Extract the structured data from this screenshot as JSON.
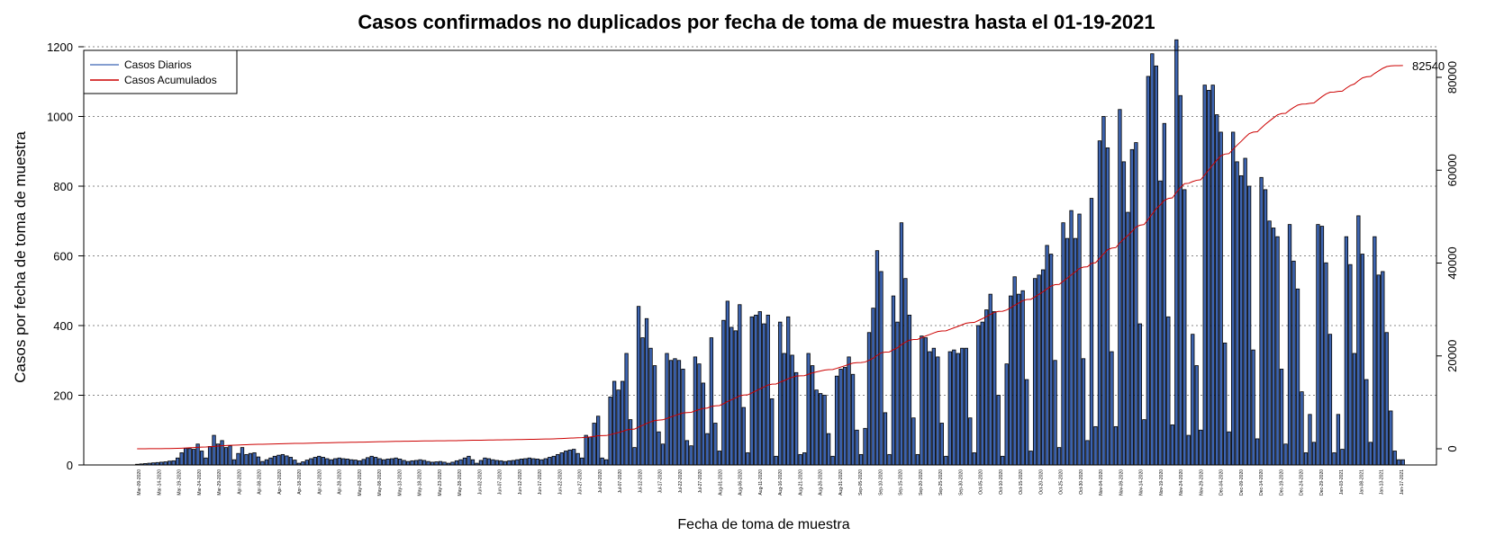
{
  "chart_data": {
    "type": "bar",
    "title": "Casos confirmados no duplicados por fecha de toma de muestra hasta el 01-19-2021",
    "xlabel": "Fecha de toma de muestra",
    "ylabel": "Casos por fecha de toma de muestra",
    "ylim": [
      0,
      1200
    ],
    "y_ticks": [
      0,
      200,
      400,
      600,
      800,
      1000,
      1200
    ],
    "y2lim": [
      0,
      85000
    ],
    "y2_ticks": [
      0,
      20000,
      40000,
      60000,
      80000
    ],
    "grid": "horizontal dotted",
    "legend_position": "top-left",
    "legend": [
      "Casos Diarios",
      "Casos Acumulados"
    ],
    "end_label": "82540",
    "x_tick_labels": [
      "Mar-09-2020",
      "Mar-14-2020",
      "Mar-19-2020",
      "Mar-24-2020",
      "Mar-29-2020",
      "Apr-03-2020",
      "Apr-08-2020",
      "Apr-13-2020",
      "Apr-18-2020",
      "Apr-23-2020",
      "Apr-28-2020",
      "May-03-2020",
      "May-08-2020",
      "May-13-2020",
      "May-18-2020",
      "May-23-2020",
      "May-28-2020",
      "Jun-02-2020",
      "Jun-07-2020",
      "Jun-12-2020",
      "Jun-17-2020",
      "Jun-22-2020",
      "Jun-27-2020",
      "Jul-02-2020",
      "Jul-07-2020",
      "Jul-12-2020",
      "Jul-17-2020",
      "Jul-22-2020",
      "Jul-27-2020",
      "Aug-01-2020",
      "Aug-06-2020",
      "Aug-11-2020",
      "Aug-16-2020",
      "Aug-21-2020",
      "Aug-26-2020",
      "Aug-31-2020",
      "Sep-05-2020",
      "Sep-10-2020",
      "Sep-15-2020",
      "Sep-20-2020",
      "Sep-25-2020",
      "Sep-30-2020",
      "Oct-05-2020",
      "Oct-10-2020",
      "Oct-15-2020",
      "Oct-20-2020",
      "Oct-25-2020",
      "Oct-30-2020",
      "Nov-04-2020",
      "Nov-09-2020",
      "Nov-14-2020",
      "Nov-19-2020",
      "Nov-24-2020",
      "Nov-29-2020",
      "Dec-04-2020",
      "Dec-09-2020",
      "Dec-14-2020",
      "Dec-19-2020",
      "Dec-24-2020",
      "Dec-29-2020",
      "Jan-03-2021",
      "Jan-08-2021",
      "Jan-13-2021",
      "Jan-17-2021"
    ],
    "anchors": [
      [
        0,
        2
      ],
      [
        3,
        5
      ],
      [
        6,
        8
      ],
      [
        9,
        12
      ],
      [
        10,
        20
      ],
      [
        11,
        35
      ],
      [
        12,
        48
      ],
      [
        14,
        45
      ],
      [
        15,
        60
      ],
      [
        16,
        40
      ],
      [
        17,
        20
      ],
      [
        19,
        85
      ],
      [
        20,
        60
      ],
      [
        21,
        70
      ],
      [
        22,
        50
      ],
      [
        23,
        55
      ],
      [
        24,
        15
      ],
      [
        26,
        50
      ],
      [
        27,
        30
      ],
      [
        29,
        35
      ],
      [
        31,
        10
      ],
      [
        34,
        25
      ],
      [
        36,
        30
      ],
      [
        38,
        22
      ],
      [
        40,
        5
      ],
      [
        43,
        18
      ],
      [
        45,
        25
      ],
      [
        48,
        15
      ],
      [
        50,
        20
      ],
      [
        53,
        15
      ],
      [
        55,
        12
      ],
      [
        58,
        25
      ],
      [
        61,
        15
      ],
      [
        64,
        20
      ],
      [
        67,
        10
      ],
      [
        70,
        15
      ],
      [
        73,
        8
      ],
      [
        75,
        10
      ],
      [
        77,
        5
      ],
      [
        80,
        15
      ],
      [
        82,
        25
      ],
      [
        84,
        5
      ],
      [
        86,
        20
      ],
      [
        88,
        15
      ],
      [
        91,
        10
      ],
      [
        94,
        15
      ],
      [
        97,
        20
      ],
      [
        100,
        15
      ],
      [
        103,
        25
      ],
      [
        106,
        40
      ],
      [
        108,
        45
      ],
      [
        110,
        20
      ],
      [
        111,
        85
      ],
      [
        112,
        80
      ],
      [
        113,
        120
      ],
      [
        114,
        140
      ],
      [
        115,
        20
      ],
      [
        116,
        15
      ],
      [
        117,
        195
      ],
      [
        118,
        240
      ],
      [
        119,
        215
      ],
      [
        120,
        240
      ],
      [
        121,
        320
      ],
      [
        122,
        130
      ],
      [
        123,
        50
      ],
      [
        124,
        455
      ],
      [
        125,
        365
      ],
      [
        126,
        420
      ],
      [
        127,
        335
      ],
      [
        128,
        285
      ],
      [
        129,
        95
      ],
      [
        130,
        60
      ],
      [
        131,
        320
      ],
      [
        132,
        300
      ],
      [
        133,
        305
      ],
      [
        134,
        300
      ],
      [
        135,
        275
      ],
      [
        136,
        70
      ],
      [
        137,
        55
      ],
      [
        138,
        310
      ],
      [
        139,
        290
      ],
      [
        140,
        235
      ],
      [
        141,
        90
      ],
      [
        142,
        365
      ],
      [
        143,
        120
      ],
      [
        144,
        40
      ],
      [
        145,
        415
      ],
      [
        146,
        470
      ],
      [
        147,
        395
      ],
      [
        148,
        385
      ],
      [
        149,
        460
      ],
      [
        150,
        165
      ],
      [
        151,
        35
      ],
      [
        152,
        425
      ],
      [
        153,
        430
      ],
      [
        154,
        440
      ],
      [
        155,
        405
      ],
      [
        156,
        430
      ],
      [
        157,
        190
      ],
      [
        158,
        25
      ],
      [
        159,
        410
      ],
      [
        160,
        320
      ],
      [
        161,
        425
      ],
      [
        162,
        315
      ],
      [
        163,
        265
      ],
      [
        164,
        30
      ],
      [
        165,
        35
      ],
      [
        166,
        320
      ],
      [
        167,
        285
      ],
      [
        168,
        215
      ],
      [
        169,
        205
      ],
      [
        170,
        200
      ],
      [
        171,
        90
      ],
      [
        172,
        25
      ],
      [
        173,
        255
      ],
      [
        174,
        275
      ],
      [
        175,
        280
      ],
      [
        176,
        310
      ],
      [
        177,
        260
      ],
      [
        178,
        100
      ],
      [
        179,
        30
      ],
      [
        180,
        105
      ],
      [
        181,
        380
      ],
      [
        182,
        450
      ],
      [
        183,
        615
      ],
      [
        184,
        555
      ],
      [
        185,
        150
      ],
      [
        186,
        30
      ],
      [
        187,
        485
      ],
      [
        188,
        410
      ],
      [
        189,
        695
      ],
      [
        190,
        535
      ],
      [
        191,
        430
      ],
      [
        192,
        135
      ],
      [
        193,
        30
      ],
      [
        194,
        370
      ],
      [
        195,
        365
      ],
      [
        196,
        325
      ],
      [
        197,
        335
      ],
      [
        198,
        310
      ],
      [
        199,
        120
      ],
      [
        200,
        25
      ],
      [
        201,
        325
      ],
      [
        202,
        330
      ],
      [
        203,
        320
      ],
      [
        204,
        335
      ],
      [
        205,
        335
      ],
      [
        206,
        135
      ],
      [
        207,
        35
      ],
      [
        208,
        400
      ],
      [
        209,
        410
      ],
      [
        210,
        445
      ],
      [
        211,
        490
      ],
      [
        212,
        440
      ],
      [
        213,
        200
      ],
      [
        214,
        25
      ],
      [
        215,
        290
      ],
      [
        216,
        485
      ],
      [
        217,
        540
      ],
      [
        218,
        490
      ],
      [
        219,
        500
      ],
      [
        220,
        245
      ],
      [
        221,
        40
      ],
      [
        222,
        535
      ],
      [
        223,
        545
      ],
      [
        224,
        560
      ],
      [
        225,
        630
      ],
      [
        226,
        605
      ],
      [
        227,
        300
      ],
      [
        228,
        50
      ],
      [
        229,
        695
      ],
      [
        230,
        650
      ],
      [
        231,
        730
      ],
      [
        232,
        650
      ],
      [
        233,
        720
      ],
      [
        234,
        305
      ],
      [
        235,
        70
      ],
      [
        236,
        765
      ],
      [
        237,
        110
      ],
      [
        238,
        930
      ],
      [
        239,
        1000
      ],
      [
        240,
        910
      ],
      [
        241,
        325
      ],
      [
        242,
        110
      ],
      [
        243,
        1020
      ],
      [
        244,
        870
      ],
      [
        245,
        725
      ],
      [
        246,
        905
      ],
      [
        247,
        925
      ],
      [
        248,
        405
      ],
      [
        249,
        130
      ],
      [
        250,
        1115
      ],
      [
        251,
        1180
      ],
      [
        252,
        1145
      ],
      [
        253,
        815
      ],
      [
        254,
        980
      ],
      [
        255,
        425
      ],
      [
        256,
        115
      ],
      [
        257,
        1220
      ],
      [
        258,
        1060
      ],
      [
        259,
        790
      ],
      [
        260,
        85
      ],
      [
        261,
        375
      ],
      [
        262,
        285
      ],
      [
        263,
        100
      ],
      [
        264,
        1090
      ],
      [
        265,
        1075
      ],
      [
        266,
        1090
      ],
      [
        267,
        1005
      ],
      [
        268,
        955
      ],
      [
        269,
        350
      ],
      [
        270,
        95
      ],
      [
        271,
        955
      ],
      [
        272,
        870
      ],
      [
        273,
        830
      ],
      [
        274,
        880
      ],
      [
        275,
        800
      ],
      [
        276,
        330
      ],
      [
        277,
        75
      ],
      [
        278,
        825
      ],
      [
        279,
        790
      ],
      [
        280,
        700
      ],
      [
        281,
        680
      ],
      [
        282,
        655
      ],
      [
        283,
        275
      ],
      [
        284,
        60
      ],
      [
        285,
        690
      ],
      [
        286,
        585
      ],
      [
        287,
        505
      ],
      [
        288,
        210
      ],
      [
        289,
        35
      ],
      [
        290,
        145
      ],
      [
        291,
        65
      ],
      [
        292,
        690
      ],
      [
        293,
        685
      ],
      [
        294,
        580
      ],
      [
        295,
        375
      ],
      [
        296,
        35
      ],
      [
        297,
        145
      ],
      [
        298,
        45
      ],
      [
        299,
        655
      ],
      [
        300,
        575
      ],
      [
        301,
        320
      ],
      [
        302,
        715
      ],
      [
        303,
        605
      ],
      [
        304,
        245
      ],
      [
        305,
        65
      ],
      [
        306,
        655
      ],
      [
        307,
        545
      ],
      [
        308,
        555
      ],
      [
        309,
        380
      ],
      [
        310,
        155
      ],
      [
        311,
        40
      ],
      [
        312,
        15
      ],
      [
        313,
        15
      ]
    ]
  }
}
